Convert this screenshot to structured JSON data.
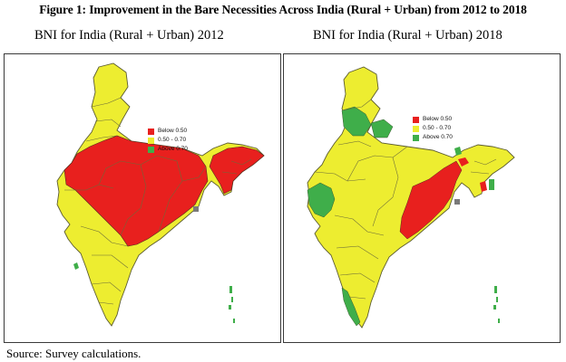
{
  "figure_title": "Figure 1: Improvement in the Bare Necessities Across India (Rural + Urban) from 2012 to 2018",
  "maps": [
    {
      "title": "BNI for India (Rural + Urban) 2012",
      "legend": [
        {
          "label": "Below 0.50",
          "color": "#e8201e"
        },
        {
          "label": "0.50 - 0.70",
          "color": "#eded30"
        },
        {
          "label": "Above 0.70",
          "color": "#3fae4a"
        }
      ]
    },
    {
      "title": "BNI for India (Rural + Urban) 2018",
      "legend": [
        {
          "label": "Below 0.50",
          "color": "#e8201e"
        },
        {
          "label": "0.50 - 0.70",
          "color": "#eded30"
        },
        {
          "label": "Above 0.70",
          "color": "#3fae4a"
        }
      ]
    }
  ],
  "source_note": "Source: Survey calculations.",
  "colors": {
    "below_050": "#e8201e",
    "mid_050_070": "#eded30",
    "above_070": "#3fae4a",
    "state_border": "#6b6b3a",
    "frame": "#3a3a3a"
  }
}
